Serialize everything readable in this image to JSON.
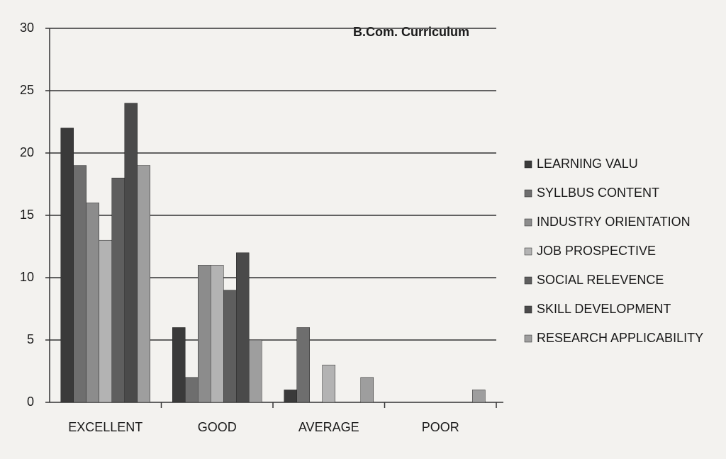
{
  "chart_data": {
    "type": "bar",
    "title": "B.Com. Curriculum",
    "categories": [
      "EXCELLENT",
      "GOOD",
      "AVERAGE",
      "POOR"
    ],
    "series": [
      {
        "name": "LEARNING VALU",
        "color": "#3a3a3a",
        "values": [
          22,
          6,
          1,
          0
        ]
      },
      {
        "name": "SYLLBUS CONTENT",
        "color": "#6e6e6e",
        "values": [
          19,
          2,
          6,
          0
        ]
      },
      {
        "name": "INDUSTRY ORIENTATION",
        "color": "#8c8c8c",
        "values": [
          16,
          11,
          0,
          0
        ]
      },
      {
        "name": "JOB PROSPECTIVE",
        "color": "#b3b3b3",
        "values": [
          13,
          11,
          3,
          0
        ]
      },
      {
        "name": "SOCIAL RELEVENCE",
        "color": "#5e5e5e",
        "values": [
          18,
          9,
          0,
          0
        ]
      },
      {
        "name": "SKILL DEVELOPMENT",
        "color": "#4a4a4a",
        "values": [
          24,
          12,
          0,
          0
        ]
      },
      {
        "name": "RESEARCH APPLICABILITY",
        "color": "#9e9e9e",
        "values": [
          19,
          5,
          2,
          1
        ]
      }
    ],
    "ylim": [
      0,
      30
    ],
    "yticks": [
      0,
      5,
      10,
      15,
      20,
      25,
      30
    ],
    "grid": true,
    "legend": "right"
  }
}
